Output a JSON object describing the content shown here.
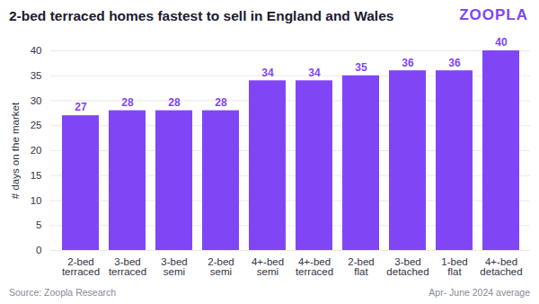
{
  "chart_data": {
    "type": "bar",
    "title": "2-bed terraced homes fastest to sell in England and Wales",
    "logo": "ZOOPLA",
    "source": "Source: Zoopla Research",
    "caption": "Apr- June 2024 average",
    "y_label": "# days on the market",
    "categories": [
      "2-bed terraced",
      "3-bed terraced",
      "3-bed semi",
      "2-bed semi",
      "4+-bed semi",
      "4+-bed terraced",
      "2-bed flat",
      "3-bed detached",
      "1-bed flat",
      "4+-bed detached"
    ],
    "values": [
      27,
      28,
      28,
      28,
      34,
      34,
      35,
      36,
      36,
      40
    ],
    "color": "#8046f6",
    "ylim": [
      0,
      40
    ],
    "yticks": [
      0,
      5,
      10,
      15,
      20,
      25,
      30,
      35,
      40
    ],
    "grid": true,
    "data_labels": true
  }
}
